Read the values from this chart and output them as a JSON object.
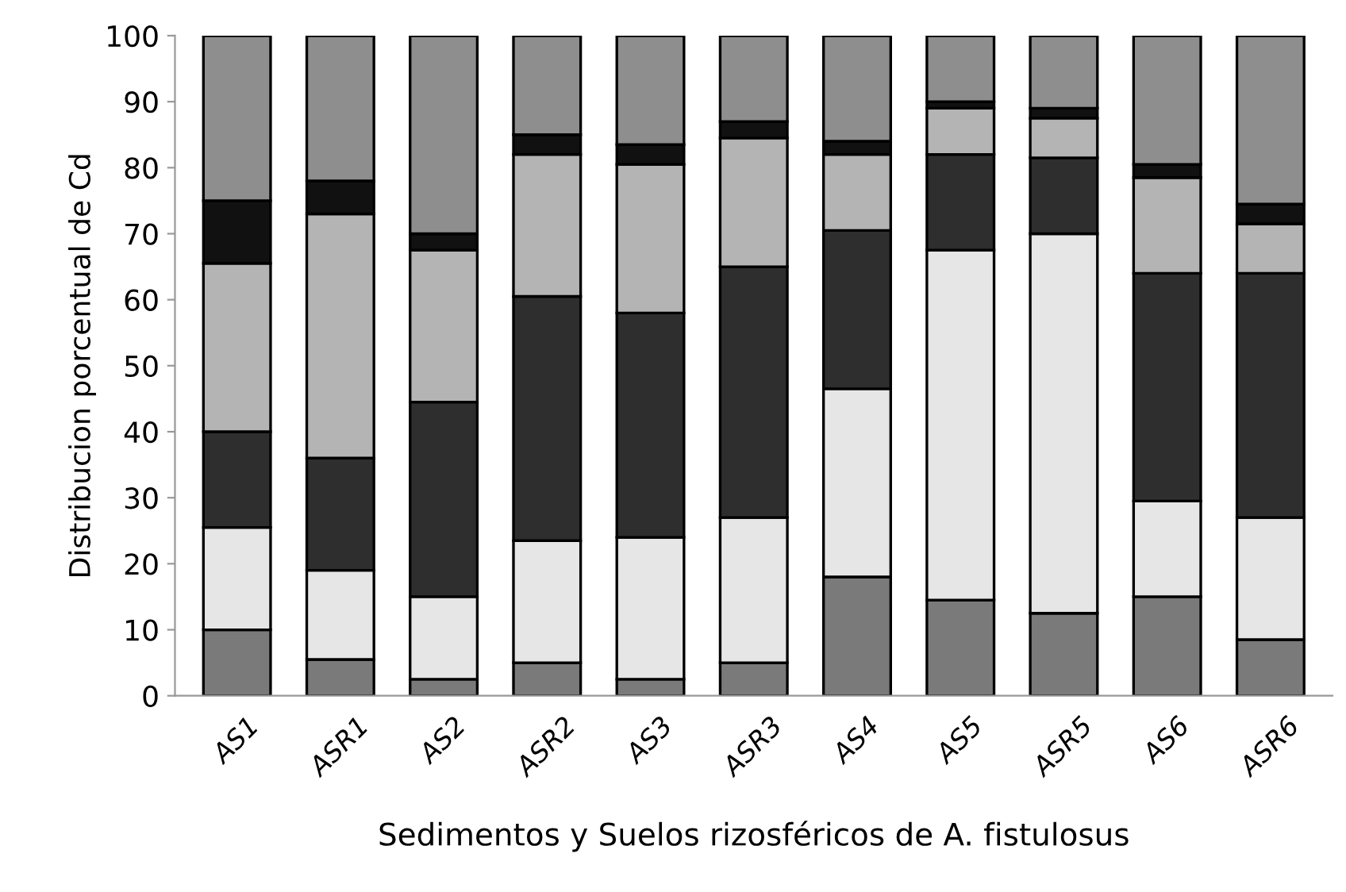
{
  "chart_data": {
    "type": "bar",
    "stacked": true,
    "xlabel": "Sedimentos y Suelos rizosféricos de A. fistulosus",
    "ylabel": "Distribucion porcentual de Cd",
    "categories": [
      "AS1",
      "ASR1",
      "AS2",
      "ASR2",
      "AS3",
      "ASR3",
      "AS4",
      "AS5",
      "ASR5",
      "AS6",
      "ASR6"
    ],
    "series": [
      {
        "color": "#7a7a7a",
        "values": [
          10,
          5.5,
          2.5,
          5,
          2.5,
          5,
          18,
          14.5,
          12.5,
          15,
          8.5
        ]
      },
      {
        "color": "#e6e6e6",
        "values": [
          15.5,
          13.5,
          12.5,
          18.5,
          21.5,
          22,
          28.5,
          53,
          57.5,
          14.5,
          18.5
        ]
      },
      {
        "color": "#2e2e2e",
        "values": [
          14.5,
          17,
          29.5,
          37,
          34,
          38,
          24,
          14.5,
          11.5,
          34.5,
          37
        ]
      },
      {
        "color": "#b4b4b4",
        "values": [
          25.5,
          37,
          23,
          21.5,
          22.5,
          19.5,
          11.5,
          7,
          6,
          14.5,
          7.5
        ]
      },
      {
        "color": "#111111",
        "values": [
          9.5,
          5,
          2.5,
          3,
          3,
          2.5,
          2,
          1,
          1.5,
          2,
          3
        ]
      },
      {
        "color": "#8e8e8e",
        "values": [
          25,
          22,
          30,
          15,
          16.5,
          13,
          16,
          10,
          11,
          19.5,
          25.5
        ]
      }
    ],
    "ylim": [
      0,
      100
    ],
    "yticks": [
      0,
      10,
      20,
      30,
      40,
      50,
      60,
      70,
      80,
      90,
      100
    ],
    "grid": false,
    "legend": false
  }
}
